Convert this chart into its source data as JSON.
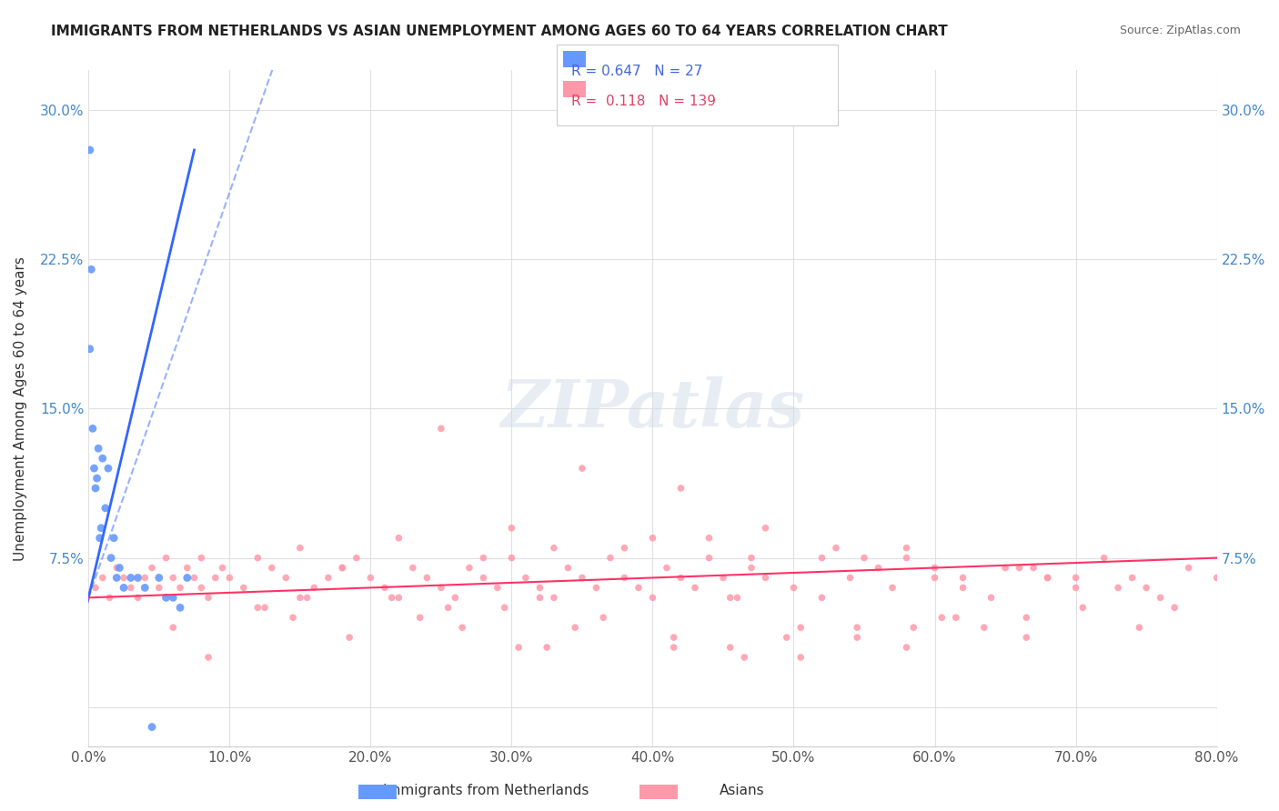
{
  "title": "IMMIGRANTS FROM NETHERLANDS VS ASIAN UNEMPLOYMENT AMONG AGES 60 TO 64 YEARS CORRELATION CHART",
  "source": "Source: ZipAtlas.com",
  "xlabel": "",
  "ylabel": "Unemployment Among Ages 60 to 64 years",
  "legend_labels": [
    "Immigrants from Netherlands",
    "Asians"
  ],
  "legend_entries": [
    {
      "R": "0.647",
      "N": "27"
    },
    {
      "R": "0.118",
      "N": "139"
    }
  ],
  "blue_color": "#6699ff",
  "pink_color": "#ff99aa",
  "trend_blue": "#3366ff",
  "trend_pink": "#ff3366",
  "blue_scatter": {
    "x": [
      0.001,
      0.002,
      0.001,
      0.003,
      0.004,
      0.005,
      0.006,
      0.007,
      0.008,
      0.009,
      0.01,
      0.012,
      0.014,
      0.016,
      0.018,
      0.02,
      0.022,
      0.025,
      0.03,
      0.035,
      0.04,
      0.05,
      0.06,
      0.065,
      0.07,
      0.055,
      0.045
    ],
    "y": [
      0.28,
      0.22,
      0.18,
      0.14,
      0.12,
      0.11,
      0.115,
      0.13,
      0.085,
      0.09,
      0.125,
      0.1,
      0.12,
      0.075,
      0.085,
      0.065,
      0.07,
      0.06,
      0.065,
      0.065,
      0.06,
      0.065,
      0.055,
      0.05,
      0.065,
      0.055,
      -0.01
    ]
  },
  "pink_scatter": {
    "x": [
      0.005,
      0.01,
      0.015,
      0.02,
      0.025,
      0.03,
      0.035,
      0.04,
      0.045,
      0.05,
      0.055,
      0.06,
      0.065,
      0.07,
      0.075,
      0.08,
      0.085,
      0.09,
      0.095,
      0.1,
      0.11,
      0.12,
      0.13,
      0.14,
      0.15,
      0.16,
      0.17,
      0.18,
      0.19,
      0.2,
      0.21,
      0.22,
      0.23,
      0.24,
      0.25,
      0.26,
      0.27,
      0.28,
      0.29,
      0.3,
      0.31,
      0.32,
      0.33,
      0.34,
      0.35,
      0.36,
      0.37,
      0.38,
      0.39,
      0.4,
      0.41,
      0.42,
      0.43,
      0.44,
      0.45,
      0.46,
      0.47,
      0.48,
      0.5,
      0.52,
      0.54,
      0.56,
      0.58,
      0.6,
      0.62,
      0.64,
      0.66,
      0.68,
      0.7,
      0.72,
      0.74,
      0.76,
      0.78,
      0.8,
      0.25,
      0.35,
      0.42,
      0.48,
      0.15,
      0.22,
      0.55,
      0.65,
      0.3,
      0.38,
      0.44,
      0.52,
      0.58,
      0.67,
      0.28,
      0.33,
      0.4,
      0.47,
      0.53,
      0.6,
      0.7,
      0.75,
      0.08,
      0.18,
      0.68,
      0.73,
      0.12,
      0.32,
      0.57,
      0.62,
      0.77,
      0.06,
      0.145,
      0.255,
      0.455,
      0.505,
      0.615,
      0.705,
      0.155,
      0.345,
      0.455,
      0.545,
      0.635,
      0.235,
      0.325,
      0.495,
      0.585,
      0.665,
      0.125,
      0.215,
      0.305,
      0.415,
      0.545,
      0.605,
      0.295,
      0.415,
      0.505,
      0.58,
      0.665,
      0.745,
      0.085,
      0.185,
      0.265,
      0.365,
      0.465
    ],
    "y": [
      0.06,
      0.065,
      0.055,
      0.07,
      0.065,
      0.06,
      0.055,
      0.065,
      0.07,
      0.06,
      0.075,
      0.065,
      0.06,
      0.07,
      0.065,
      0.06,
      0.055,
      0.065,
      0.07,
      0.065,
      0.06,
      0.075,
      0.07,
      0.065,
      0.055,
      0.06,
      0.065,
      0.07,
      0.075,
      0.065,
      0.06,
      0.055,
      0.07,
      0.065,
      0.06,
      0.055,
      0.07,
      0.065,
      0.06,
      0.075,
      0.065,
      0.06,
      0.055,
      0.07,
      0.065,
      0.06,
      0.075,
      0.065,
      0.06,
      0.055,
      0.07,
      0.065,
      0.06,
      0.075,
      0.065,
      0.055,
      0.07,
      0.065,
      0.06,
      0.055,
      0.065,
      0.07,
      0.075,
      0.065,
      0.06,
      0.055,
      0.07,
      0.065,
      0.06,
      0.075,
      0.065,
      0.055,
      0.07,
      0.065,
      0.14,
      0.12,
      0.11,
      0.09,
      0.08,
      0.085,
      0.075,
      0.07,
      0.09,
      0.08,
      0.085,
      0.075,
      0.08,
      0.07,
      0.075,
      0.08,
      0.085,
      0.075,
      0.08,
      0.07,
      0.065,
      0.06,
      0.075,
      0.07,
      0.065,
      0.06,
      0.05,
      0.055,
      0.06,
      0.065,
      0.05,
      0.04,
      0.045,
      0.05,
      0.055,
      0.04,
      0.045,
      0.05,
      0.055,
      0.04,
      0.03,
      0.035,
      0.04,
      0.045,
      0.03,
      0.035,
      0.04,
      0.045,
      0.05,
      0.055,
      0.03,
      0.035,
      0.04,
      0.045,
      0.05,
      0.03,
      0.025,
      0.03,
      0.035,
      0.04,
      0.025,
      0.035,
      0.04,
      0.045,
      0.025
    ]
  },
  "xlim": [
    0,
    0.8
  ],
  "ylim": [
    -0.02,
    0.32
  ],
  "xticks": [
    0,
    0.1,
    0.2,
    0.3,
    0.4,
    0.5,
    0.6,
    0.7,
    0.8
  ],
  "yticks": [
    0,
    0.075,
    0.15,
    0.225,
    0.3
  ],
  "ytick_labels": [
    "",
    "7.5%",
    "15.0%",
    "22.5%",
    "30.0%"
  ],
  "xtick_labels": [
    "0.0%",
    "10.0%",
    "20.0%",
    "30.0%",
    "40.0%",
    "50.0%",
    "60.0%",
    "70.0%",
    "80.0%"
  ],
  "grid_color": "#e0e0e0",
  "watermark": "ZIPatlas",
  "watermark_color": "#d0dde8",
  "background_color": "#ffffff"
}
